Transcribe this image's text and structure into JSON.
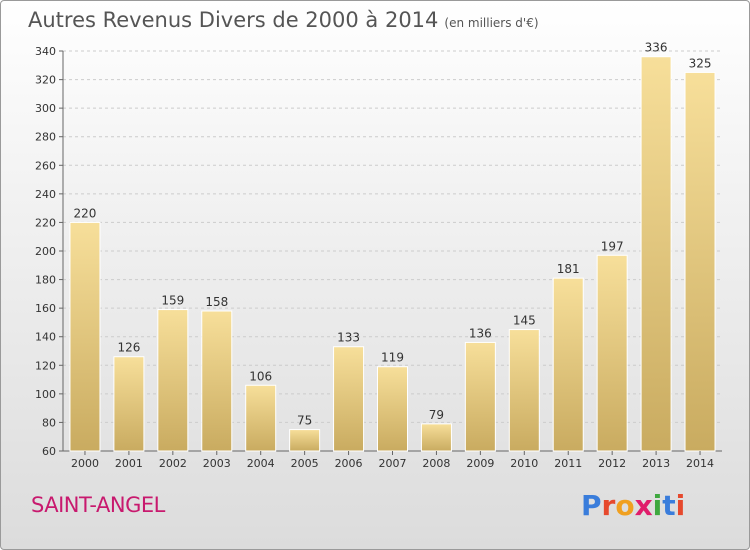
{
  "title": "Autres Revenus Divers de 2000 à 2014",
  "subtitle": "(en milliers d'€)",
  "place": "SAINT-ANGEL",
  "logo": {
    "letters": [
      "P",
      "r",
      "o",
      "x",
      "i",
      "t",
      "i"
    ],
    "colors": [
      "#3a7ddb",
      "#e6492d",
      "#f0a020",
      "#e01d6b",
      "#3fa83f",
      "#3a7ddb",
      "#e6492d"
    ]
  },
  "chart_data": {
    "type": "bar",
    "categories": [
      "2000",
      "2001",
      "2002",
      "2003",
      "2004",
      "2005",
      "2006",
      "2007",
      "2008",
      "2009",
      "2010",
      "2011",
      "2012",
      "2013",
      "2014"
    ],
    "values": [
      220,
      126,
      159,
      158,
      106,
      75,
      133,
      119,
      79,
      136,
      145,
      181,
      197,
      336,
      325
    ],
    "ylim": [
      60,
      340
    ],
    "yticks": [
      60,
      80,
      100,
      120,
      140,
      160,
      180,
      200,
      220,
      240,
      260,
      280,
      300,
      320,
      340
    ],
    "grid": true,
    "bar_color_light": "#f7df9a",
    "bar_color_dark": "#c9ab60"
  }
}
